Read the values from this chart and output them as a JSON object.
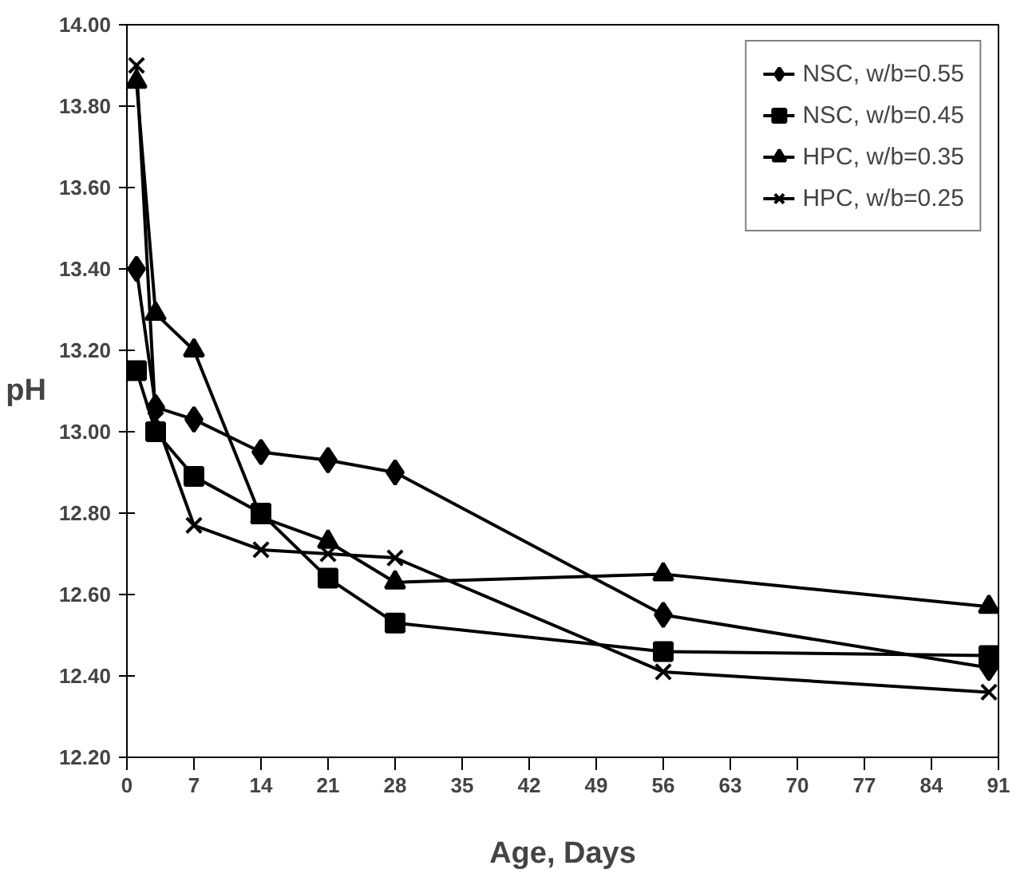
{
  "chart_data": {
    "type": "line",
    "xlabel": "Age, Days",
    "ylabel": "pH",
    "xlim": [
      0,
      91
    ],
    "xticks": [
      0,
      7,
      14,
      21,
      28,
      35,
      42,
      49,
      56,
      63,
      70,
      77,
      84,
      91
    ],
    "ylim": [
      12.2,
      14.0
    ],
    "yticks": [
      {
        "value": 12.2,
        "label": "12.20"
      },
      {
        "value": 12.4,
        "label": "12.40"
      },
      {
        "value": 12.6,
        "label": "12.60"
      },
      {
        "value": 12.8,
        "label": "12.80"
      },
      {
        "value": 13.0,
        "label": "13.00"
      },
      {
        "value": 13.2,
        "label": "13.20"
      },
      {
        "value": 13.4,
        "label": "13.40"
      },
      {
        "value": 13.6,
        "label": "13.60"
      },
      {
        "value": 13.8,
        "label": "13.80"
      },
      {
        "value": 14.0,
        "label": "14.00"
      }
    ],
    "x": [
      1,
      3,
      7,
      14,
      21,
      28,
      56,
      90
    ],
    "grid": false,
    "legend": "top right",
    "line_style": "solid",
    "series": [
      {
        "name": "NSC, w/b=0.55",
        "color": "#000000",
        "marker": "diamond",
        "values": [
          13.4,
          13.06,
          13.03,
          12.95,
          12.93,
          12.9,
          12.55,
          12.42
        ]
      },
      {
        "name": "NSC, w/b=0.45",
        "color": "#000000",
        "marker": "square",
        "values": [
          13.15,
          13.0,
          12.89,
          12.8,
          12.64,
          12.53,
          12.46,
          12.45
        ]
      },
      {
        "name": "HPC, w/b=0.35",
        "color": "#000000",
        "marker": "triangle",
        "values": [
          13.86,
          13.29,
          13.2,
          12.79,
          12.73,
          12.63,
          12.65,
          12.57
        ]
      },
      {
        "name": "HPC, w/b=0.25",
        "color": "#000000",
        "marker": "x",
        "values": [
          13.9,
          13.03,
          12.77,
          12.71,
          12.7,
          12.69,
          12.41,
          12.36
        ]
      }
    ]
  }
}
